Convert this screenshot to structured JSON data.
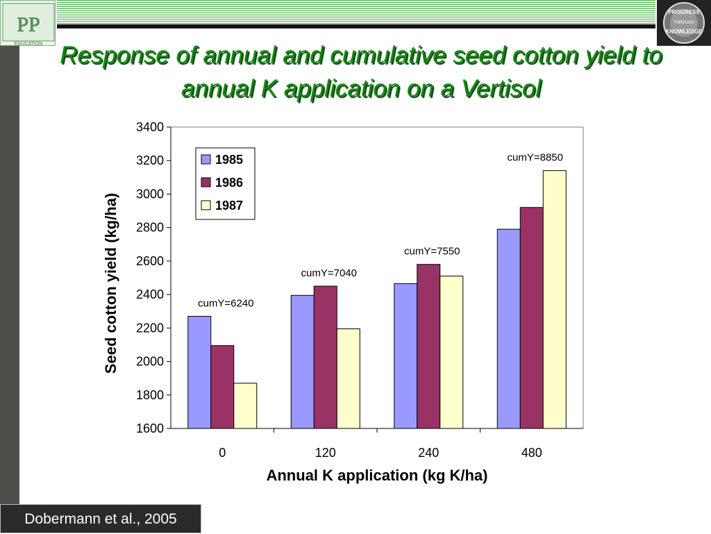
{
  "slide": {
    "title": "Response of annual and cumulative seed cotton yield to annual K application on a Vertisol",
    "citation": "Dobermann et al., 2005"
  },
  "logos": {
    "left": {
      "text": "PPI PPIC",
      "subtext": "EDUCATION"
    },
    "right": {
      "lines": [
        "PROGRESS",
        "THROUGH",
        "KNOWLEDGE"
      ]
    }
  },
  "colors": {
    "title": "#118a11",
    "series": [
      "#9999ff",
      "#993366",
      "#ffffcc"
    ]
  },
  "chart_data": {
    "type": "bar",
    "categories": [
      "0",
      "120",
      "240",
      "480"
    ],
    "series": [
      {
        "name": "1985",
        "values": [
          2270,
          2395,
          2465,
          2790
        ]
      },
      {
        "name": "1986",
        "values": [
          2095,
          2450,
          2580,
          2920
        ]
      },
      {
        "name": "1987",
        "values": [
          1870,
          2195,
          2510,
          3140
        ]
      }
    ],
    "annotations": [
      "cumY=6240",
      "cumY=7040",
      "cumY=7550",
      "cumY=8850"
    ],
    "xlabel": "Annual K application (kg K/ha)",
    "ylabel": "Seed cotton yield (kg/ha)",
    "ylim": [
      1600,
      3400
    ],
    "yticks": [
      1600,
      1800,
      2000,
      2200,
      2400,
      2600,
      2800,
      3000,
      3200,
      3400
    ],
    "grid": false,
    "legend_position": "top-left"
  }
}
